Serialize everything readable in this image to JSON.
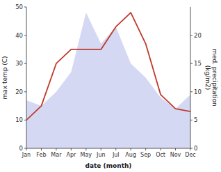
{
  "chart_data": {
    "type": "area",
    "xlabel": "date (month)",
    "ylabel": "max temp (C)",
    "y2label": "med. precipitation\n(kg/m2)",
    "categories": [
      "Jan",
      "Feb",
      "Mar",
      "Apr",
      "May",
      "Jun",
      "Jul",
      "Aug",
      "Sep",
      "Oct",
      "Nov",
      "Dec"
    ],
    "series": [
      {
        "name": "max temp",
        "type": "area",
        "color": "#b0b8e8",
        "values": [
          17,
          15,
          20,
          27,
          48,
          37,
          43,
          30,
          25,
          18,
          14,
          19
        ]
      },
      {
        "name": "precipitation",
        "type": "line",
        "axis": "y2",
        "color": "#c0392b",
        "values": [
          5.0,
          7.5,
          15.0,
          17.5,
          17.5,
          17.5,
          21.5,
          24.0,
          18.5,
          9.5,
          7.0,
          6.5
        ]
      }
    ],
    "ylim": [
      0,
      50
    ],
    "yticks": [
      0,
      10,
      20,
      30,
      40,
      50
    ],
    "y2lim": [
      0,
      25
    ],
    "y2ticks": [
      0,
      5,
      10,
      15,
      20
    ],
    "grid": false
  }
}
